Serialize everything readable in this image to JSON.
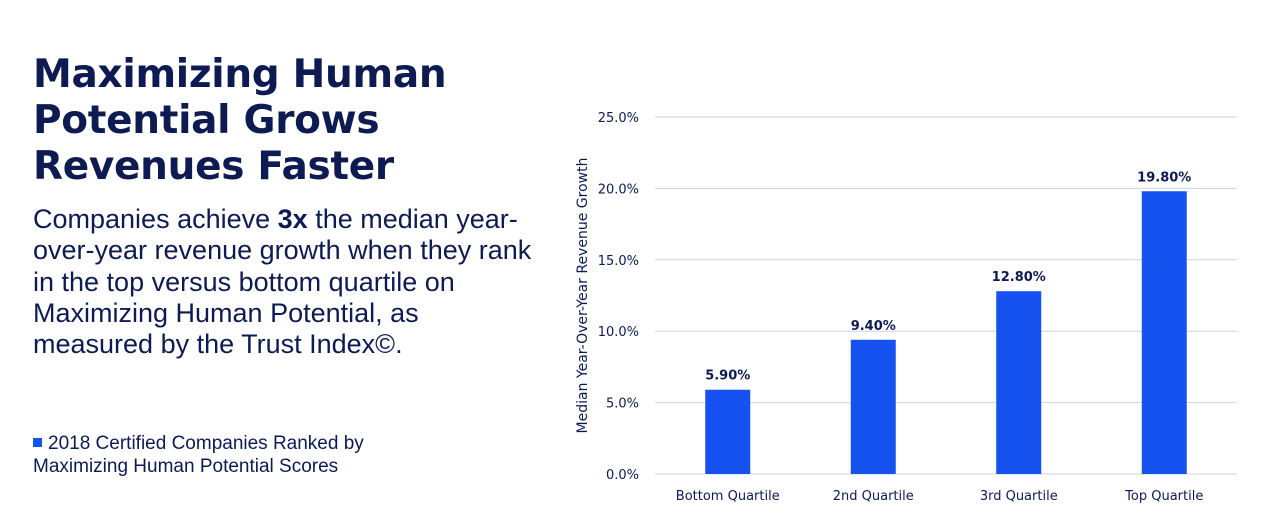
{
  "headline": "Maximizing Human Potential Grows Revenues Faster",
  "subtext": {
    "before": "Companies achieve ",
    "bold": "3x",
    "after": " the median year-over-year revenue growth when they rank in the top versus bottom quartile on Maximizing Human Potential, as measured by the Trust Index©."
  },
  "legend": {
    "label": "2018 Certified Companies Ranked by Maximizing Human Potential Scores",
    "color": "#1652f0"
  },
  "colors": {
    "text": "#0d1b52",
    "bar": "#1652f0",
    "grid": "#cdd3e3"
  },
  "chart_data": {
    "type": "bar",
    "categories": [
      "Bottom Quartile",
      "2nd Quartile",
      "3rd Quartile",
      "Top Quartile"
    ],
    "values": [
      5.9,
      9.4,
      12.8,
      19.8
    ],
    "data_labels": [
      "5.90%",
      "9.40%",
      "12.80%",
      "19.80%"
    ],
    "xlabel": "",
    "ylabel": "Median Year-Over-Year Revenue Growth",
    "ylim": [
      0,
      25
    ],
    "y_ticks": [
      0,
      5,
      10,
      15,
      20,
      25
    ],
    "y_tick_labels": [
      "0.0%",
      "5.0%",
      "10.0%",
      "15.0%",
      "20.0%",
      "25.0%"
    ],
    "grid": true,
    "legend": "left"
  }
}
